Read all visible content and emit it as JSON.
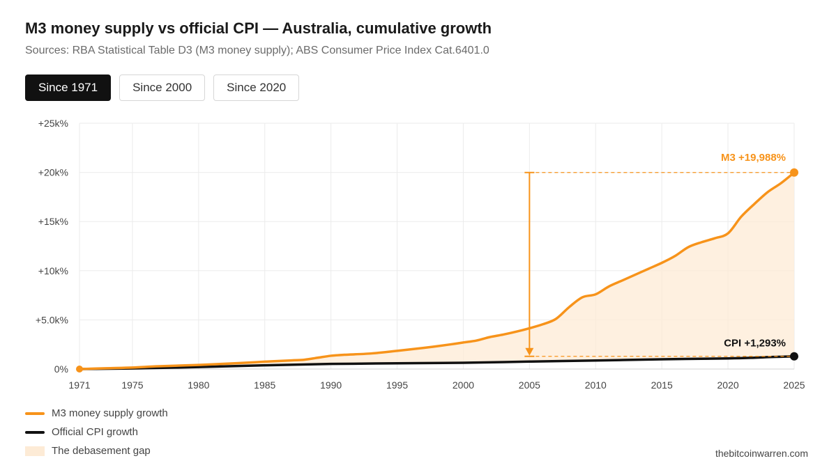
{
  "header": {
    "title": "M3 money supply vs official CPI — Australia, cumulative growth",
    "subtitle": "Sources: RBA Statistical Table D3 (M3 money supply); ABS Consumer Price Index Cat.6401.0"
  },
  "tabs": [
    {
      "label": "Since 1971",
      "active": true
    },
    {
      "label": "Since 2000",
      "active": false
    },
    {
      "label": "Since 2020",
      "active": false
    }
  ],
  "legend": {
    "m3": "M3 money supply growth",
    "cpi": "Official CPI growth",
    "gap": "The debasement gap"
  },
  "footer": "thebitcoinwarren.com",
  "colors": {
    "m3": "#f7931a",
    "cpi": "#111111",
    "gap": "#fdebd6",
    "grid": "#ebebeb",
    "text": "#444444"
  },
  "chart_data": {
    "type": "line",
    "title": "M3 money supply vs official CPI — Australia, cumulative growth",
    "xlabel": "",
    "ylabel": "",
    "xlim": [
      1971,
      2025
    ],
    "ylim": [
      0,
      25000
    ],
    "x_ticks": [
      1971,
      1975,
      1980,
      1985,
      1990,
      1995,
      2000,
      2005,
      2010,
      2015,
      2020,
      2025
    ],
    "y_ticks": [
      0,
      5000,
      10000,
      15000,
      20000,
      25000
    ],
    "y_tick_labels": [
      "0%",
      "+5.0k%",
      "+10k%",
      "+15k%",
      "+20k%",
      "+25k%"
    ],
    "grid": true,
    "legend_position": "bottom-left",
    "series": [
      {
        "name": "M3 money supply growth",
        "x": [
          1971,
          1973,
          1975,
          1977,
          1980,
          1983,
          1985,
          1987,
          1988,
          1989,
          1990,
          1991,
          1993,
          1995,
          1997,
          1999,
          2000,
          2001,
          2002,
          2003,
          2004,
          2005,
          2006,
          2007,
          2008,
          2009,
          2010,
          2011,
          2012,
          2013,
          2014,
          2015,
          2016,
          2017,
          2018,
          2019,
          2020,
          2021,
          2022,
          2023,
          2024,
          2025
        ],
        "values": [
          0,
          80,
          150,
          280,
          420,
          600,
          750,
          880,
          950,
          1150,
          1350,
          1450,
          1580,
          1850,
          2150,
          2500,
          2700,
          2900,
          3250,
          3500,
          3800,
          4150,
          4550,
          5100,
          6300,
          7300,
          7600,
          8400,
          9000,
          9600,
          10200,
          10800,
          11500,
          12400,
          12900,
          13300,
          13800,
          15500,
          16800,
          18000,
          18900,
          19988
        ]
      },
      {
        "name": "Official CPI growth",
        "x": [
          1971,
          1975,
          1980,
          1985,
          1990,
          1995,
          2000,
          2005,
          2010,
          2015,
          2020,
          2022,
          2023,
          2024,
          2025
        ],
        "values": [
          0,
          60,
          200,
          380,
          520,
          580,
          640,
          760,
          870,
          990,
          1080,
          1150,
          1210,
          1250,
          1293
        ]
      }
    ],
    "annotations": [
      {
        "series": "M3 money supply growth",
        "label": "M3 +19,988%",
        "x": 2025,
        "y": 19988
      },
      {
        "series": "Official CPI growth",
        "label": "CPI +1,293%",
        "x": 2025,
        "y": 1293
      },
      {
        "type": "gap-arrow",
        "x": 2005,
        "from": 1293,
        "to": 19988
      }
    ]
  }
}
